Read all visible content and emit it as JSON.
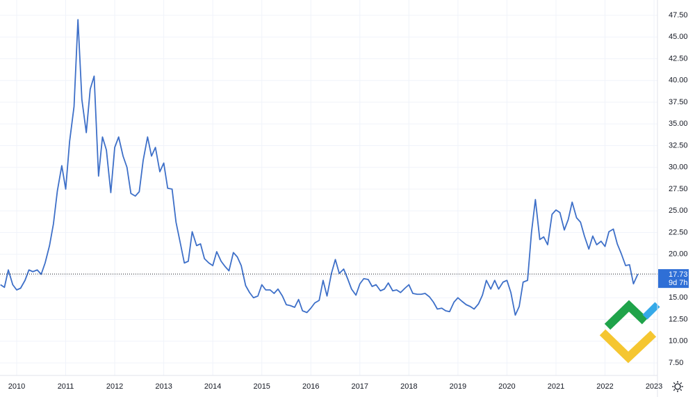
{
  "chart_data": {
    "type": "line",
    "color": "#3d6fc8",
    "current_value": 17.73,
    "current_value_label": "17.73",
    "countdown": "9d 7h",
    "grid": true,
    "xlim": [
      2009.66,
      2023.07
    ],
    "ylim": [
      6.06,
      49.26
    ],
    "xticks": [
      2010,
      2011,
      2012,
      2013,
      2014,
      2015,
      2016,
      2017,
      2018,
      2019,
      2020,
      2021,
      2022,
      2023
    ],
    "yticks": [
      {
        "value": 7.5,
        "label": "7.50"
      },
      {
        "value": 10,
        "label": "10.00"
      },
      {
        "value": 12.5,
        "label": "12.50"
      },
      {
        "value": 15,
        "label": "15.00"
      },
      {
        "value": 17.5,
        "label": "17.50"
      },
      {
        "value": 20,
        "label": "20.00"
      },
      {
        "value": 22.5,
        "label": "22.50"
      },
      {
        "value": 25,
        "label": "25.00"
      },
      {
        "value": 27.5,
        "label": "27.50"
      },
      {
        "value": 30,
        "label": "30.00"
      },
      {
        "value": 32.5,
        "label": "32.50"
      },
      {
        "value": 35,
        "label": "35.00"
      },
      {
        "value": 37.5,
        "label": "37.50"
      },
      {
        "value": 40,
        "label": "40.00"
      },
      {
        "value": 42.5,
        "label": "42.50"
      },
      {
        "value": 45,
        "label": "45.00"
      },
      {
        "value": 47.5,
        "label": "47.50"
      }
    ],
    "x": [
      2009.67,
      2009.75,
      2009.83,
      2009.92,
      2010.0,
      2010.08,
      2010.17,
      2010.25,
      2010.33,
      2010.42,
      2010.5,
      2010.58,
      2010.67,
      2010.75,
      2010.83,
      2010.92,
      2011.0,
      2011.08,
      2011.17,
      2011.25,
      2011.33,
      2011.42,
      2011.5,
      2011.58,
      2011.67,
      2011.75,
      2011.83,
      2011.92,
      2012.0,
      2012.08,
      2012.17,
      2012.25,
      2012.33,
      2012.42,
      2012.5,
      2012.58,
      2012.67,
      2012.75,
      2012.83,
      2012.92,
      2013.0,
      2013.08,
      2013.17,
      2013.25,
      2013.33,
      2013.42,
      2013.5,
      2013.58,
      2013.67,
      2013.75,
      2013.83,
      2013.92,
      2014.0,
      2014.08,
      2014.17,
      2014.25,
      2014.33,
      2014.42,
      2014.5,
      2014.58,
      2014.67,
      2014.75,
      2014.83,
      2014.92,
      2015.0,
      2015.08,
      2015.17,
      2015.25,
      2015.33,
      2015.42,
      2015.5,
      2015.58,
      2015.67,
      2015.75,
      2015.83,
      2015.92,
      2016.0,
      2016.08,
      2016.17,
      2016.25,
      2016.33,
      2016.42,
      2016.5,
      2016.58,
      2016.67,
      2016.75,
      2016.83,
      2016.92,
      2017.0,
      2017.08,
      2017.17,
      2017.25,
      2017.33,
      2017.42,
      2017.5,
      2017.58,
      2017.67,
      2017.75,
      2017.83,
      2017.92,
      2018.0,
      2018.08,
      2018.17,
      2018.25,
      2018.33,
      2018.42,
      2018.5,
      2018.58,
      2018.67,
      2018.75,
      2018.83,
      2018.92,
      2019.0,
      2019.08,
      2019.17,
      2019.25,
      2019.33,
      2019.42,
      2019.5,
      2019.58,
      2019.67,
      2019.75,
      2019.83,
      2019.92,
      2020.0,
      2020.08,
      2020.17,
      2020.25,
      2020.33,
      2020.42,
      2020.5,
      2020.58,
      2020.67,
      2020.75,
      2020.83,
      2020.92,
      2021.0,
      2021.08,
      2021.17,
      2021.25,
      2021.33,
      2021.42,
      2021.5,
      2021.58,
      2021.67,
      2021.75,
      2021.83,
      2021.92,
      2022.0,
      2022.08,
      2022.17,
      2022.25,
      2022.33,
      2022.42,
      2022.5,
      2022.58,
      2022.67
    ],
    "values": [
      16.5,
      16.2,
      18.2,
      16.5,
      15.9,
      16.1,
      17.0,
      18.2,
      18.0,
      18.2,
      17.7,
      19.0,
      21.0,
      23.5,
      27.3,
      30.2,
      27.5,
      33.0,
      37.0,
      47.0,
      37.8,
      34.0,
      39.0,
      40.5,
      29.0,
      33.5,
      32.0,
      27.1,
      32.3,
      33.5,
      31.3,
      30.0,
      27.0,
      26.7,
      27.2,
      30.8,
      33.5,
      31.3,
      32.3,
      29.5,
      30.5,
      27.6,
      27.5,
      23.7,
      21.5,
      19.0,
      19.2,
      22.6,
      21.0,
      21.2,
      19.5,
      19.0,
      18.7,
      20.3,
      19.2,
      18.6,
      18.1,
      20.2,
      19.7,
      18.7,
      16.4,
      15.6,
      15.0,
      15.2,
      16.5,
      15.9,
      15.9,
      15.5,
      16.0,
      15.2,
      14.2,
      14.1,
      13.9,
      14.8,
      13.5,
      13.3,
      13.8,
      14.4,
      14.7,
      17.0,
      15.2,
      17.8,
      19.4,
      17.8,
      18.3,
      17.2,
      16.0,
      15.3,
      16.6,
      17.2,
      17.1,
      16.3,
      16.5,
      15.8,
      16.0,
      16.7,
      15.8,
      15.9,
      15.6,
      16.1,
      16.5,
      15.5,
      15.4,
      15.4,
      15.5,
      15.1,
      14.5,
      13.7,
      13.8,
      13.5,
      13.4,
      14.5,
      15.0,
      14.6,
      14.2,
      14.0,
      13.7,
      14.3,
      15.3,
      17.0,
      16.0,
      17.0,
      16.0,
      16.8,
      17.0,
      15.6,
      13.0,
      14.0,
      16.8,
      17.0,
      22.5,
      26.3,
      21.7,
      22.0,
      21.1,
      24.6,
      25.1,
      24.8,
      22.8,
      24.0,
      26.0,
      24.2,
      23.7,
      22.1,
      20.6,
      22.1,
      21.1,
      21.5,
      20.9,
      22.6,
      22.9,
      21.2,
      20.1,
      18.7,
      18.8,
      16.6,
      17.73
    ]
  }
}
